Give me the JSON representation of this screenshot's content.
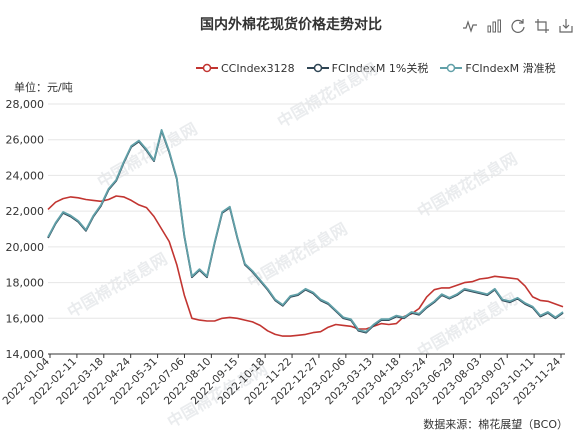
{
  "title": "国内外棉花现货价格走势对比",
  "unit_label": "单位：元/吨",
  "source_label": "数据来源：棉花展望（BCO）",
  "toolbar": {
    "icons": [
      "line-chart-icon",
      "bar-chart-icon",
      "refresh-icon",
      "crop-icon",
      "download-icon"
    ]
  },
  "chart_data": {
    "type": "line",
    "title": "国内外棉花现货价格走势对比",
    "ylabel": "单位：元/吨",
    "xlabel": "",
    "ylim": [
      14000,
      28000
    ],
    "yticks": [
      14000,
      16000,
      18000,
      20000,
      22000,
      24000,
      26000,
      28000
    ],
    "ytick_labels": [
      "14,000",
      "16,000",
      "18,000",
      "20,000",
      "22,000",
      "24,000",
      "26,000",
      "28,000"
    ],
    "xticks": [
      "2022-01-04",
      "2022-02-11",
      "2022-03-18",
      "2022-04-24",
      "2022-05-31",
      "2022-07-06",
      "2022-08-10",
      "2022-09-15",
      "2022-10-18",
      "2022-11-22",
      "2022-12-27",
      "2023-02-06",
      "2023-03-13",
      "2023-04-18",
      "2023-05-24",
      "2023-06-29",
      "2023-08-03",
      "2023-09-07",
      "2023-10-11",
      "2023-11-24"
    ],
    "legend_position": "top",
    "grid": "horizontal",
    "series": [
      {
        "name": "CCIndex3128",
        "color": "#c23531",
        "values": [
          22100,
          22500,
          22700,
          22800,
          22750,
          22650,
          22600,
          22550,
          22650,
          22850,
          22800,
          22600,
          22350,
          22200,
          21700,
          21000,
          20300,
          19000,
          17300,
          16000,
          15900,
          15850,
          15850,
          16000,
          16050,
          16000,
          15900,
          15800,
          15600,
          15300,
          15100,
          15000,
          15000,
          15050,
          15100,
          15200,
          15250,
          15500,
          15650,
          15600,
          15550,
          15400,
          15400,
          15550,
          15700,
          15650,
          15700,
          16100,
          16250,
          16550,
          17200,
          17600,
          17700,
          17700,
          17850,
          18000,
          18050,
          18200,
          18250,
          18350,
          18300,
          18250,
          18200,
          17800,
          17200,
          17000,
          16950,
          16800,
          16650
        ]
      },
      {
        "name": "FCIndexM 1%关税",
        "color": "#2f4554",
        "values": [
          20500,
          21300,
          21900,
          21700,
          21400,
          20900,
          21700,
          22300,
          23200,
          23700,
          24700,
          25600,
          25900,
          25400,
          24800,
          26500,
          25300,
          23800,
          20600,
          18300,
          18700,
          18300,
          20200,
          21900,
          22200,
          20500,
          19000,
          18600,
          18100,
          17600,
          17000,
          16700,
          17200,
          17300,
          17600,
          17400,
          17000,
          16800,
          16400,
          16000,
          15900,
          15300,
          15200,
          15600,
          15900,
          15900,
          16100,
          16000,
          16300,
          16200,
          16600,
          16900,
          17300,
          17100,
          17300,
          17600,
          17500,
          17400,
          17300,
          17600,
          17000,
          16900,
          17100,
          16800,
          16600,
          16100,
          16300,
          16000,
          16300
        ]
      },
      {
        "name": "FCIndexM 滑准税",
        "color": "#61a0a8",
        "values": [
          20550,
          21350,
          21950,
          21750,
          21450,
          20950,
          21750,
          22350,
          23250,
          23750,
          24750,
          25650,
          25950,
          25450,
          24850,
          26550,
          25350,
          23850,
          20650,
          18350,
          18750,
          18350,
          20250,
          21950,
          22250,
          20550,
          19050,
          18650,
          18150,
          17650,
          17050,
          16750,
          17250,
          17350,
          17650,
          17450,
          17050,
          16850,
          16450,
          16050,
          15950,
          15350,
          15250,
          15650,
          15950,
          15950,
          16150,
          16050,
          16350,
          16250,
          16650,
          16950,
          17350,
          17150,
          17350,
          17650,
          17550,
          17450,
          17350,
          17650,
          17050,
          16950,
          17150,
          16850,
          16650,
          16150,
          16350,
          16050,
          16350
        ]
      }
    ]
  },
  "watermark_text": "中国棉花信息网"
}
